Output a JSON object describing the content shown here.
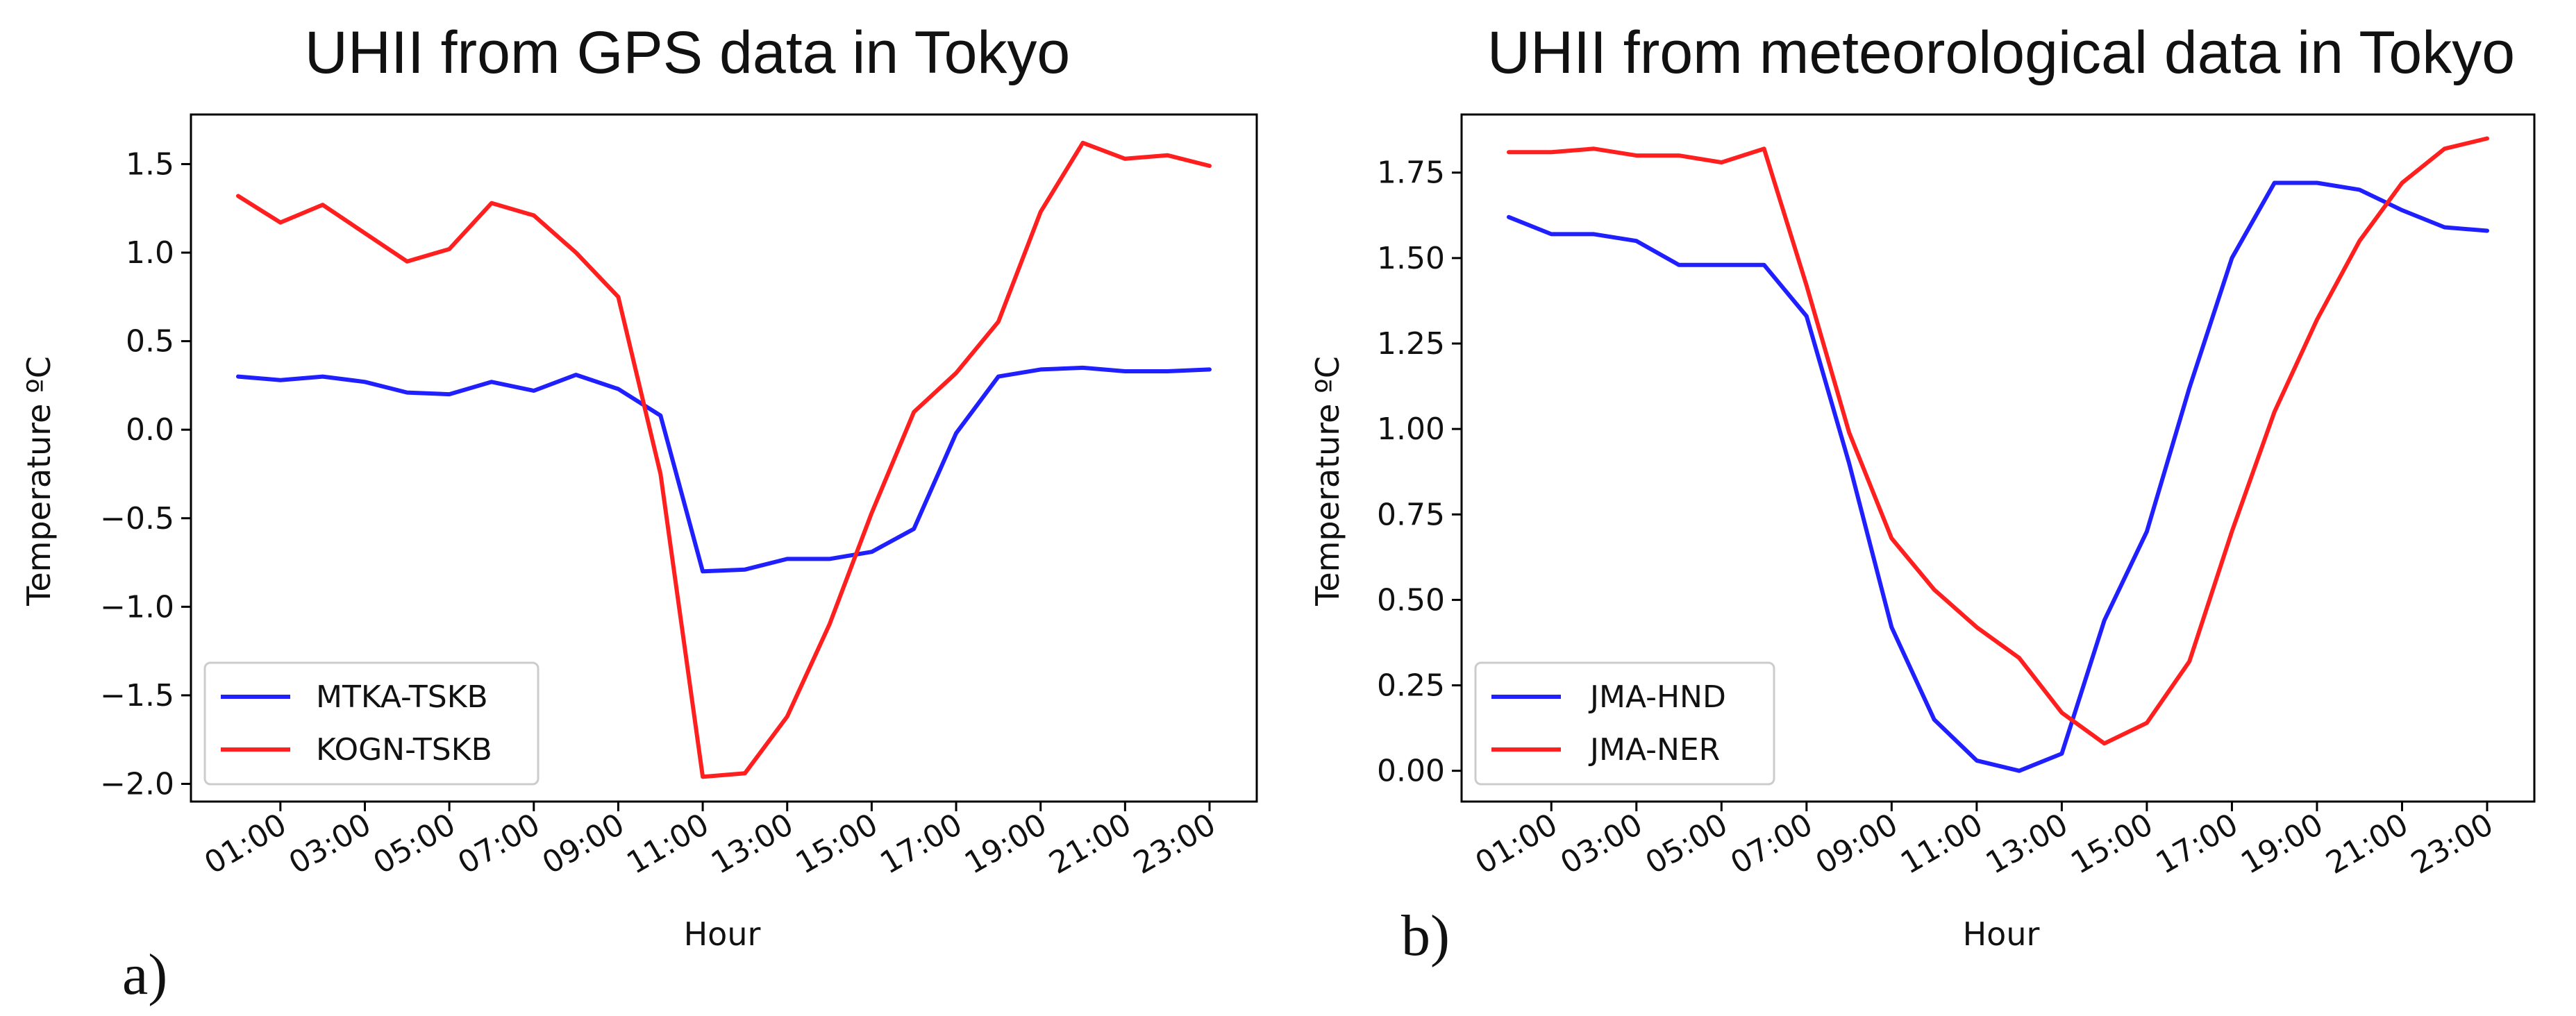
{
  "chart_data": [
    {
      "type": "line",
      "panel_label": "a)",
      "title": "UHII from GPS data in Tokyo",
      "xlabel": "Hour",
      "ylabel": "Temperature ºC",
      "x": [
        "00:00",
        "01:00",
        "02:00",
        "03:00",
        "04:00",
        "05:00",
        "06:00",
        "07:00",
        "08:00",
        "09:00",
        "10:00",
        "11:00",
        "12:00",
        "13:00",
        "14:00",
        "15:00",
        "16:00",
        "17:00",
        "18:00",
        "19:00",
        "20:00",
        "21:00",
        "22:00",
        "23:00"
      ],
      "xtick_labels": [
        "01:00",
        "03:00",
        "05:00",
        "07:00",
        "09:00",
        "11:00",
        "13:00",
        "15:00",
        "17:00",
        "19:00",
        "21:00",
        "23:00"
      ],
      "ylim": [
        -2.1,
        1.78
      ],
      "yticks": [
        -2.0,
        -1.5,
        -1.0,
        -0.5,
        0.0,
        0.5,
        1.0,
        1.5
      ],
      "ytick_labels": [
        "−2.0",
        "−1.5",
        "−1.0",
        "−0.5",
        "0.0",
        "0.5",
        "1.0",
        "1.5"
      ],
      "legend_position": "lower-left",
      "series": [
        {
          "name": "MTKA-TSKB",
          "color": "#1f1fff",
          "values": [
            0.3,
            0.28,
            0.3,
            0.27,
            0.21,
            0.2,
            0.27,
            0.22,
            0.31,
            0.23,
            0.08,
            -0.8,
            -0.79,
            -0.73,
            -0.73,
            -0.69,
            -0.56,
            -0.02,
            0.3,
            0.34,
            0.35,
            0.33,
            0.33,
            0.34
          ]
        },
        {
          "name": "KOGN-TSKB",
          "color": "#ff1f1f",
          "values": [
            1.32,
            1.17,
            1.27,
            1.11,
            0.95,
            1.02,
            1.28,
            1.21,
            1.0,
            0.75,
            -0.25,
            -1.96,
            -1.94,
            -1.62,
            -1.1,
            -0.47,
            0.1,
            0.32,
            0.61,
            1.23,
            1.62,
            1.53,
            1.55,
            1.49
          ]
        }
      ]
    },
    {
      "type": "line",
      "panel_label": "b)",
      "title": "UHII from meteorological data in Tokyo",
      "xlabel": "Hour",
      "ylabel": "Temperature ºC",
      "x": [
        "00:00",
        "01:00",
        "02:00",
        "03:00",
        "04:00",
        "05:00",
        "06:00",
        "07:00",
        "08:00",
        "09:00",
        "10:00",
        "11:00",
        "12:00",
        "13:00",
        "14:00",
        "15:00",
        "16:00",
        "17:00",
        "18:00",
        "19:00",
        "20:00",
        "21:00",
        "22:00",
        "23:00"
      ],
      "xtick_labels": [
        "01:00",
        "03:00",
        "05:00",
        "07:00",
        "09:00",
        "11:00",
        "13:00",
        "15:00",
        "17:00",
        "19:00",
        "21:00",
        "23:00"
      ],
      "ylim": [
        -0.09,
        1.92
      ],
      "yticks": [
        0.0,
        0.25,
        0.5,
        0.75,
        1.0,
        1.25,
        1.5,
        1.75
      ],
      "ytick_labels": [
        "0.00",
        "0.25",
        "0.50",
        "0.75",
        "1.00",
        "1.25",
        "1.50",
        "1.75"
      ],
      "legend_position": "lower-left",
      "series": [
        {
          "name": "JMA-HND",
          "color": "#1f1fff",
          "values": [
            1.62,
            1.57,
            1.57,
            1.55,
            1.48,
            1.48,
            1.48,
            1.33,
            0.9,
            0.42,
            0.15,
            0.03,
            0.0,
            0.05,
            0.44,
            0.7,
            1.12,
            1.5,
            1.72,
            1.72,
            1.7,
            1.64,
            1.59,
            1.58
          ]
        },
        {
          "name": "JMA-NER",
          "color": "#ff1f1f",
          "values": [
            1.81,
            1.81,
            1.82,
            1.8,
            1.8,
            1.78,
            1.82,
            1.42,
            0.99,
            0.68,
            0.53,
            0.42,
            0.33,
            0.17,
            0.08,
            0.14,
            0.32,
            0.7,
            1.05,
            1.32,
            1.55,
            1.72,
            1.82,
            1.85
          ]
        }
      ]
    }
  ]
}
